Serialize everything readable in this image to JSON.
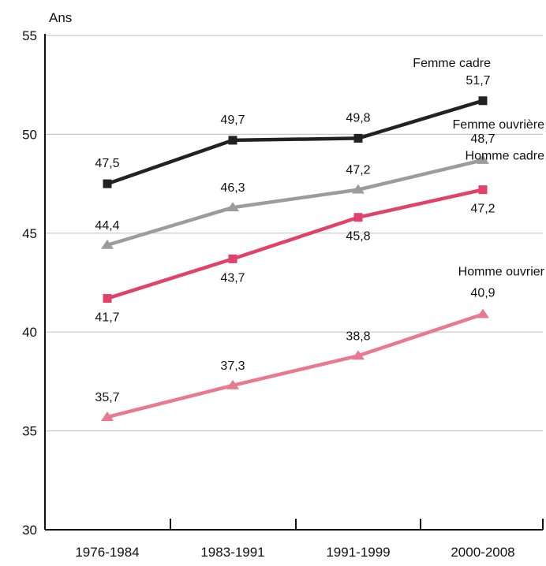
{
  "chart_data": {
    "type": "line",
    "title": "",
    "ylabel": "Ans",
    "xlabel": "",
    "categories": [
      "1976-1984",
      "1983-1991",
      "1991-1999",
      "2000-2008"
    ],
    "ylim": [
      30,
      55
    ],
    "yticks": [
      30,
      35,
      40,
      45,
      50,
      55
    ],
    "grid": true,
    "series": [
      {
        "name": "Femme cadre",
        "values": [
          47.5,
          49.7,
          49.8,
          51.7
        ],
        "labels": [
          "47,5",
          "49,7",
          "49,8",
          "51,7"
        ],
        "color": "#222222",
        "marker": "square"
      },
      {
        "name": "Femme ouvrière",
        "values": [
          44.4,
          46.3,
          47.2,
          48.7
        ],
        "labels": [
          "44,4",
          "46,3",
          "47,2",
          "48,7"
        ],
        "color": "#9c9c9c",
        "marker": "triangle"
      },
      {
        "name": "Homme cadre",
        "values": [
          41.7,
          43.7,
          45.8,
          47.2
        ],
        "labels": [
          "41,7",
          "43,7",
          "45,8",
          "47,2"
        ],
        "color": "#e0426a",
        "marker": "square"
      },
      {
        "name": "Homme ouvrier",
        "values": [
          35.7,
          37.3,
          38.8,
          40.9
        ],
        "labels": [
          "35,7",
          "37,3",
          "38,8",
          "40,9"
        ],
        "color": "#e8798f",
        "marker": "triangle"
      }
    ]
  }
}
